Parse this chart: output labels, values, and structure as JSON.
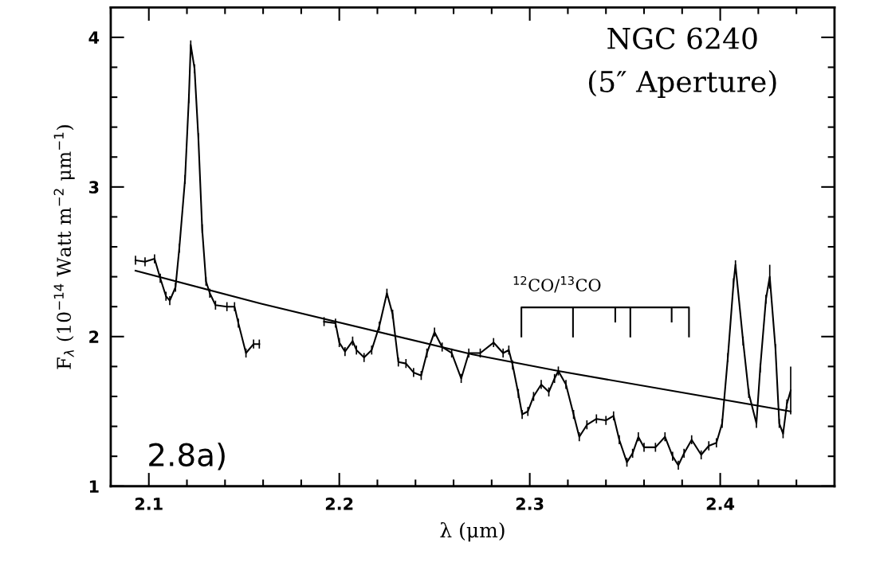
{
  "chart_data": {
    "type": "line",
    "xlabel": "λ (μm)",
    "ylabel": "F$_{λ}$ (10$^{−14}$ Watt m$^{−2}$ μm$^{−1}$)",
    "annotations": [
      "NGC 6240",
      "(5″ Aperture)",
      "2.8a)",
      "$^{12}$CO/$^{13}$CO"
    ],
    "series": [
      {
        "color": "#000000",
        "x": [
          2.093,
          2.098,
          2.103,
          2.106,
          2.109,
          2.111,
          2.114,
          2.116,
          2.119,
          2.121,
          2.122,
          2.124,
          2.126,
          2.128,
          2.13,
          2.132,
          2.135,
          2.141,
          2.145,
          2.147,
          2.151,
          2.155,
          2.158,
          2.175,
          2.192,
          2.198,
          2.2,
          2.203,
          2.207,
          2.209,
          2.213,
          2.217,
          2.221,
          2.225,
          2.228,
          2.231,
          2.235,
          2.239,
          2.243,
          2.246,
          2.25,
          2.254,
          2.259,
          2.264,
          2.268,
          2.274,
          2.281,
          2.286,
          2.289,
          2.291,
          2.294,
          2.296,
          2.299,
          2.302,
          2.306,
          2.31,
          2.313,
          2.315,
          2.319,
          2.323,
          2.326,
          2.33,
          2.335,
          2.34,
          2.344,
          2.347,
          2.351,
          2.354,
          2.357,
          2.36,
          2.366,
          2.371,
          2.375,
          2.378,
          2.381,
          2.385,
          2.39,
          2.394,
          2.398,
          2.401,
          2.404,
          2.407,
          2.408,
          2.412,
          2.415,
          2.419,
          2.421,
          2.424,
          2.426,
          2.429,
          2.431,
          2.433,
          2.435,
          2.437
        ],
        "values": [
          2.51,
          2.5,
          2.52,
          2.39,
          2.27,
          2.24,
          2.33,
          2.59,
          3.05,
          3.59,
          3.95,
          3.79,
          3.33,
          2.72,
          2.37,
          2.29,
          2.21,
          2.2,
          2.2,
          2.09,
          1.89,
          1.95,
          1.95,
          null,
          2.1,
          2.09,
          1.96,
          1.9,
          1.97,
          1.91,
          1.86,
          1.91,
          2.07,
          2.29,
          2.15,
          1.83,
          1.82,
          1.76,
          1.74,
          1.89,
          2.03,
          1.93,
          1.89,
          1.72,
          1.89,
          1.89,
          1.96,
          1.89,
          1.91,
          1.81,
          1.62,
          1.48,
          1.5,
          1.6,
          1.68,
          1.63,
          1.72,
          1.77,
          1.68,
          1.48,
          1.33,
          1.41,
          1.45,
          1.44,
          1.47,
          1.31,
          1.16,
          1.22,
          1.33,
          1.26,
          1.26,
          1.33,
          1.2,
          1.14,
          1.22,
          1.31,
          1.21,
          1.27,
          1.29,
          1.42,
          1.86,
          2.36,
          2.48,
          1.97,
          1.62,
          1.42,
          1.79,
          2.25,
          2.4,
          1.92,
          1.42,
          1.35,
          1.55,
          1.64
        ],
        "errors": [
          0.03,
          0.03,
          0.03,
          0.03,
          0.03,
          0.03,
          0.03,
          0.03,
          0.03,
          0.03,
          0.03,
          0.03,
          0.03,
          0.03,
          0.03,
          0.03,
          0.03,
          0.03,
          0.03,
          0.03,
          0.03,
          0.03,
          0.03,
          null,
          0.03,
          0.03,
          0.03,
          0.03,
          0.03,
          0.03,
          0.03,
          0.03,
          0.03,
          0.03,
          0.03,
          0.03,
          0.03,
          0.03,
          0.03,
          0.03,
          0.03,
          0.03,
          0.03,
          0.03,
          0.03,
          0.03,
          0.03,
          0.03,
          0.03,
          0.03,
          0.03,
          0.03,
          0.03,
          0.03,
          0.03,
          0.03,
          0.03,
          0.03,
          0.03,
          0.03,
          0.03,
          0.03,
          0.03,
          0.03,
          0.03,
          0.03,
          0.03,
          0.03,
          0.03,
          0.03,
          0.03,
          0.03,
          0.03,
          0.03,
          0.03,
          0.03,
          0.03,
          0.03,
          0.03,
          0.03,
          0.03,
          0.03,
          0.03,
          0.03,
          0.03,
          0.03,
          0.03,
          0.03,
          0.08,
          0.03,
          0.03,
          0.03,
          0.03,
          0.16
        ]
      },
      {
        "color": "#000000",
        "x": [
          2.093,
          2.159,
          2.27,
          2.315,
          2.437
        ],
        "values": [
          2.44,
          2.22,
          1.88,
          1.77,
          1.5
        ]
      },
      {
        "color": "#000000",
        "x": [
          2.2956,
          2.2956,
          2.3836,
          2.3836
        ],
        "values": [
          2.0,
          2.195,
          2.195,
          2.0
        ]
      },
      {
        "color": "#000000",
        "x": [
          2.3227,
          2.3227
        ],
        "values": [
          2.195,
          2.0
        ]
      },
      {
        "color": "#000000",
        "x": [
          2.3449,
          2.3449
        ],
        "values": [
          2.195,
          2.1
        ]
      },
      {
        "color": "#000000",
        "x": [
          2.3528,
          2.3528
        ],
        "values": [
          2.195,
          2.0
        ]
      },
      {
        "color": "#000000",
        "x": [
          2.3745,
          2.3745
        ],
        "values": [
          2.195,
          2.1
        ]
      }
    ],
    "xlim": [
      2.08,
      2.46
    ],
    "xticks": [
      {
        "value": 2.08,
        "label": null
      },
      2.1,
      {
        "value": 2.12,
        "label": null
      },
      {
        "value": 2.14,
        "label": null
      },
      {
        "value": 2.16,
        "label": null
      },
      {
        "value": 2.18,
        "label": null
      },
      2.2,
      {
        "value": 2.22,
        "label": null
      },
      {
        "value": 2.24,
        "label": null
      },
      {
        "value": 2.26,
        "label": null
      },
      {
        "value": 2.28,
        "label": null
      },
      2.3,
      {
        "value": 2.32,
        "label": null
      },
      {
        "value": 2.34,
        "label": null
      },
      {
        "value": 2.36,
        "label": null
      },
      {
        "value": 2.38,
        "label": null
      },
      2.4,
      {
        "value": 2.42,
        "label": null
      },
      {
        "value": 2.44,
        "label": null
      }
    ],
    "ylim": [
      1,
      4.2
    ],
    "yticks": [
      1,
      {
        "value": 1.2,
        "label": null
      },
      {
        "value": 1.4,
        "label": null
      },
      {
        "value": 1.6,
        "label": null
      },
      {
        "value": 1.8,
        "label": null
      },
      2,
      {
        "value": 2.2,
        "label": null
      },
      {
        "value": 2.4,
        "label": null
      },
      {
        "value": 2.6,
        "label": null
      },
      {
        "value": 2.8,
        "label": null
      },
      3,
      {
        "value": 3.2,
        "label": null
      },
      {
        "value": 3.4,
        "label": null
      },
      {
        "value": 3.6,
        "label": null
      },
      {
        "value": 3.8,
        "label": null
      },
      4
    ],
    "marker": "none",
    "line_style": "solid"
  }
}
